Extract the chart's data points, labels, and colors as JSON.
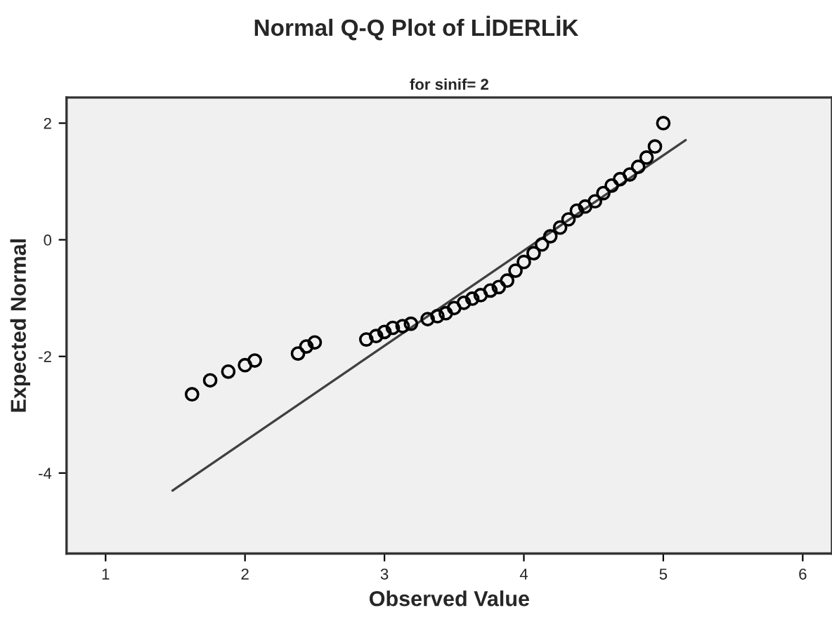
{
  "chart_data": {
    "type": "scatter",
    "title": "Normal Q-Q Plot of LİDERLİK",
    "subtitle": "for sinif= 2",
    "xlabel": "Observed Value",
    "ylabel": "Expected Normal",
    "xlim": [
      0.72,
      6.21
    ],
    "ylim": [
      -5.38,
      2.44
    ],
    "xticks": [
      1,
      2,
      3,
      4,
      5,
      6
    ],
    "yticks": [
      -4,
      -2,
      0,
      2
    ],
    "grid": false,
    "series": [
      {
        "marker": "circle",
        "color": "#000000",
        "x": [
          1.62,
          1.75,
          1.88,
          2.0,
          2.07,
          2.38,
          2.44,
          2.5,
          2.87,
          2.94,
          3.0,
          3.06,
          3.13,
          3.19,
          3.31,
          3.38,
          3.44,
          3.5,
          3.57,
          3.63,
          3.69,
          3.76,
          3.82,
          3.88,
          3.94,
          4.0,
          4.07,
          4.13,
          4.19,
          4.26,
          4.32,
          4.38,
          4.44,
          4.51,
          4.57,
          4.63,
          4.69,
          4.76,
          4.82,
          4.88,
          4.94,
          5.0
        ],
        "values": [
          -2.65,
          -2.41,
          -2.26,
          -2.15,
          -2.07,
          -1.95,
          -1.83,
          -1.76,
          -1.71,
          -1.65,
          -1.58,
          -1.51,
          -1.48,
          -1.44,
          -1.36,
          -1.31,
          -1.26,
          -1.17,
          -1.08,
          -1.01,
          -0.95,
          -0.87,
          -0.81,
          -0.7,
          -0.53,
          -0.38,
          -0.23,
          -0.08,
          0.06,
          0.21,
          0.35,
          0.5,
          0.57,
          0.66,
          0.8,
          0.93,
          1.04,
          1.12,
          1.25,
          1.41,
          1.6,
          2.0
        ]
      },
      {
        "type": "line",
        "marker": "none",
        "color": "#404040",
        "x": [
          1.48,
          5.16
        ],
        "values": [
          -4.3,
          1.71
        ]
      }
    ]
  }
}
